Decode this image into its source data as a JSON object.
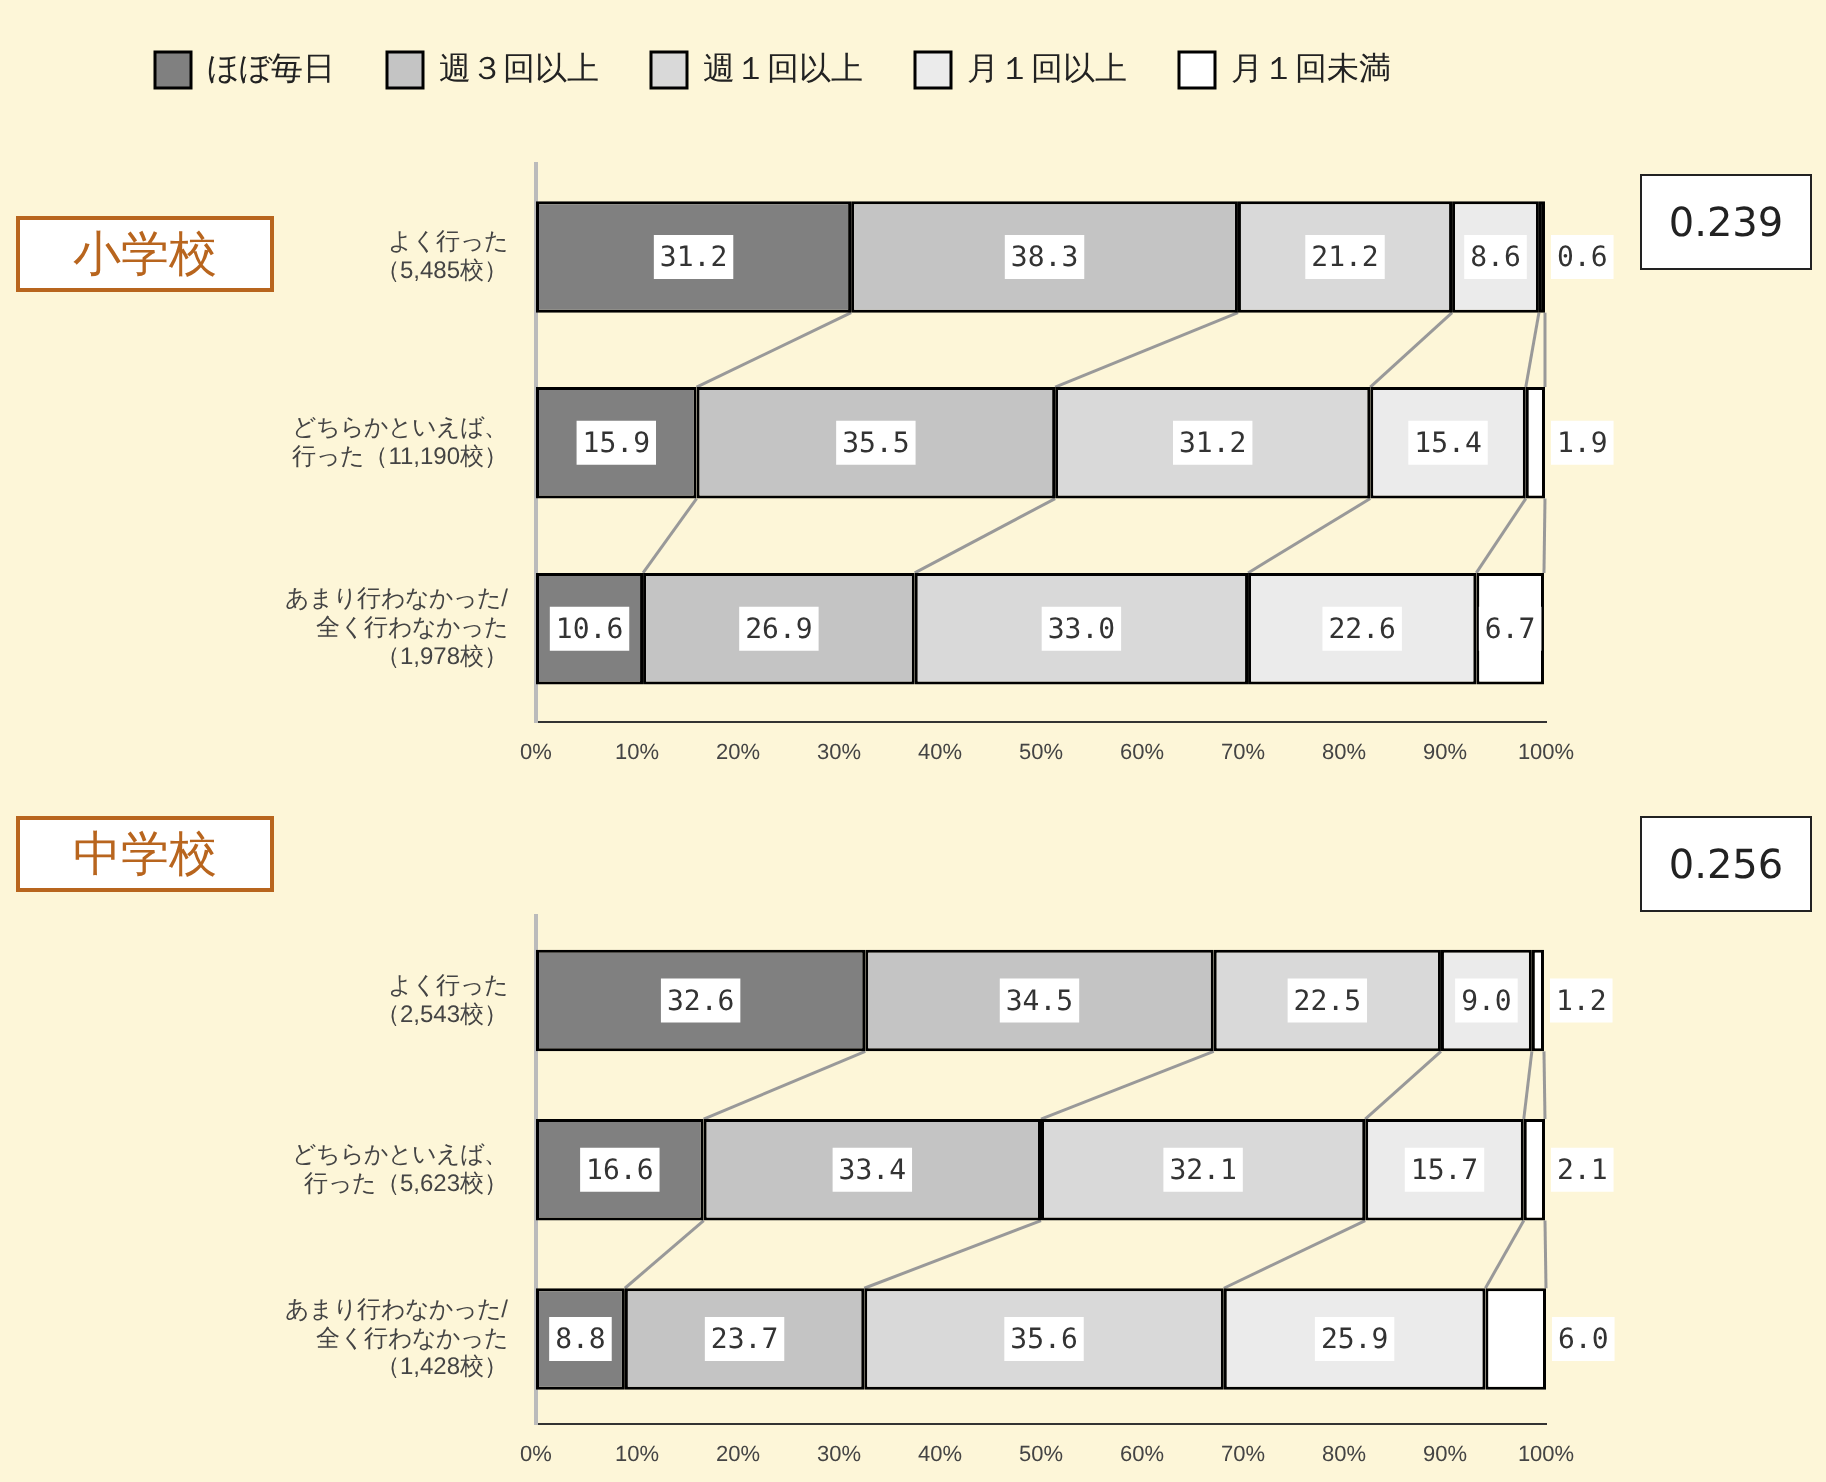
{
  "chart_data": [
    {
      "type": "bar",
      "orientation": "horizontal",
      "stacked": true,
      "title": "小学校",
      "legend": "top",
      "grid": false,
      "categories": [
        "よく行った（5,485校）",
        "どちらかといえば、行った（11,190校）",
        "あまり行わなかった/全く行わなかった（1,978校）"
      ],
      "xlim": [
        0,
        100
      ],
      "xticks": [
        {
          "value": 0,
          "label": "0%"
        },
        {
          "value": 10,
          "label": "10%"
        },
        {
          "value": 20,
          "label": "20%"
        },
        {
          "value": 30,
          "label": "30%"
        },
        {
          "value": 40,
          "label": "40%"
        },
        {
          "value": 50,
          "label": "50%"
        },
        {
          "value": 60,
          "label": "60%"
        },
        {
          "value": 70,
          "label": "70%"
        },
        {
          "value": 80,
          "label": "80%"
        },
        {
          "value": 90,
          "label": "90%"
        },
        {
          "value": 100,
          "label": "100%"
        }
      ],
      "series": [
        {
          "name": "ほぼ毎日",
          "color": "#808080",
          "values": [
            31.2,
            15.9,
            10.6
          ],
          "value_labels": [
            "31.2",
            "15.9",
            "10.6"
          ]
        },
        {
          "name": "週３回以上",
          "color": "#c4c4c4",
          "values": [
            38.3,
            35.5,
            26.9
          ],
          "value_labels": [
            "38.3",
            "35.5",
            "26.9"
          ]
        },
        {
          "name": "週１回以上",
          "color": "#d9d9d9",
          "values": [
            21.2,
            31.2,
            33.0
          ],
          "value_labels": [
            "21.2",
            "31.2",
            "33.0"
          ]
        },
        {
          "name": "月１回以上",
          "color": "#ebebeb",
          "values": [
            8.6,
            15.4,
            22.6
          ],
          "value_labels": [
            "8.6",
            "15.4",
            "22.6"
          ]
        },
        {
          "name": "月１回未満",
          "color": "#ffffff",
          "values": [
            0.6,
            1.9,
            6.7
          ],
          "value_labels": [
            "0.6",
            "1.9",
            "6.7"
          ]
        }
      ],
      "annotations": [
        "0.239"
      ]
    },
    {
      "type": "bar",
      "orientation": "horizontal",
      "stacked": true,
      "title": "中学校",
      "legend": false,
      "grid": false,
      "categories": [
        "よく行った（2,543校）",
        "どちらかといえば、行った（5,623校）",
        "あまり行わなかった/全く行わなかった（1,428校）"
      ],
      "xlim": [
        0,
        100
      ],
      "xticks": [
        {
          "value": 0,
          "label": "0%"
        },
        {
          "value": 10,
          "label": "10%"
        },
        {
          "value": 20,
          "label": "20%"
        },
        {
          "value": 30,
          "label": "30%"
        },
        {
          "value": 40,
          "label": "40%"
        },
        {
          "value": 50,
          "label": "50%"
        },
        {
          "value": 60,
          "label": "60%"
        },
        {
          "value": 70,
          "label": "70%"
        },
        {
          "value": 80,
          "label": "80%"
        },
        {
          "value": 90,
          "label": "90%"
        },
        {
          "value": 100,
          "label": "100%"
        }
      ],
      "series": [
        {
          "color": "#808080",
          "values": [
            32.6,
            16.6,
            8.8
          ],
          "value_labels": [
            "32.6",
            "16.6",
            "8.8"
          ]
        },
        {
          "color": "#c4c4c4",
          "values": [
            34.5,
            33.4,
            23.7
          ],
          "value_labels": [
            "34.5",
            "33.4",
            "23.7"
          ]
        },
        {
          "color": "#d9d9d9",
          "values": [
            22.5,
            32.1,
            35.6
          ],
          "value_labels": [
            "22.5",
            "32.1",
            "35.6"
          ]
        },
        {
          "color": "#ebebeb",
          "values": [
            9.0,
            15.7,
            25.9
          ],
          "value_labels": [
            "9.0",
            "15.7",
            "25.9"
          ]
        },
        {
          "color": "#ffffff",
          "values": [
            1.2,
            2.1,
            6.0
          ],
          "value_labels": [
            "1.2",
            "2.1",
            "6.0"
          ]
        }
      ],
      "annotations": [
        "0.256"
      ]
    }
  ]
}
